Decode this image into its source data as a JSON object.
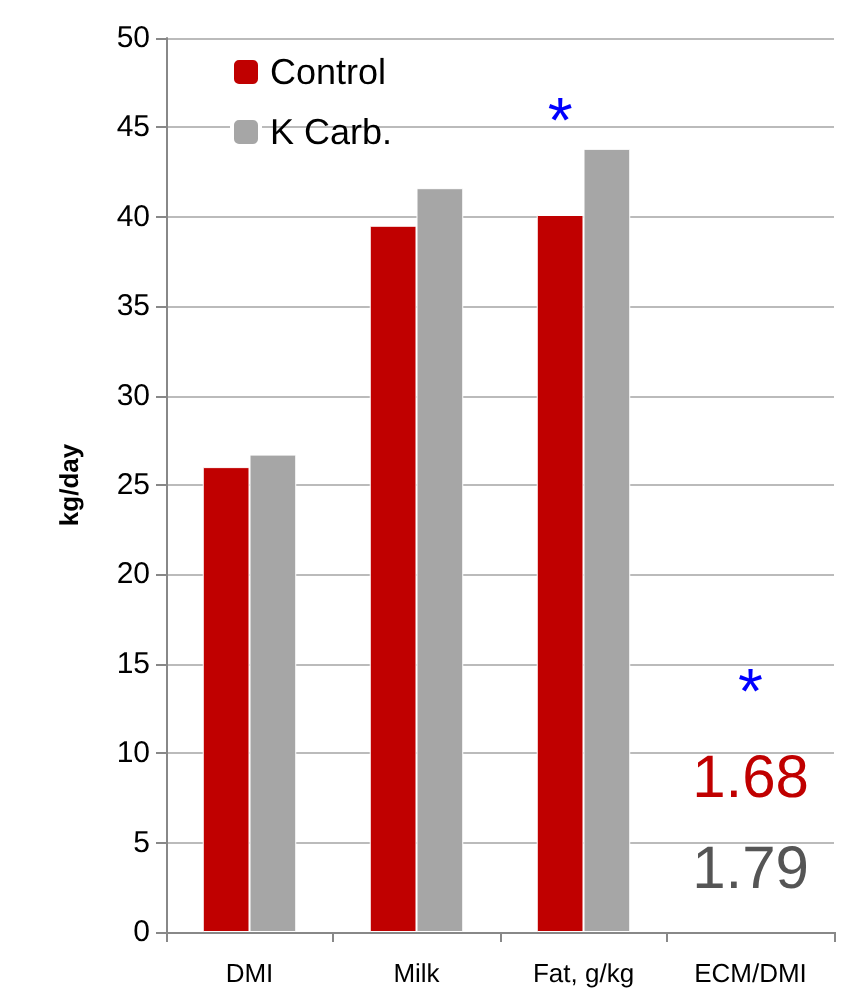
{
  "chart_data": {
    "type": "bar",
    "ylabel": "kg/day",
    "categories": [
      "DMI",
      "Milk",
      "Fat, g/kg",
      "ECM/DMI"
    ],
    "series": [
      {
        "name": "Control",
        "color": "#c00000",
        "values": [
          26,
          39.5,
          40.1,
          null
        ]
      },
      {
        "name": "K Carb.",
        "color": "#a6a6a6",
        "values": [
          26.7,
          41.6,
          43.8,
          null
        ]
      }
    ],
    "ylim": [
      0,
      50
    ],
    "yticks": [
      0,
      5,
      10,
      15,
      20,
      25,
      30,
      35,
      40,
      45,
      50
    ],
    "grid": "y",
    "legend": "top left",
    "annotations": [
      "*",
      "*",
      "1.68",
      "1.79"
    ]
  }
}
